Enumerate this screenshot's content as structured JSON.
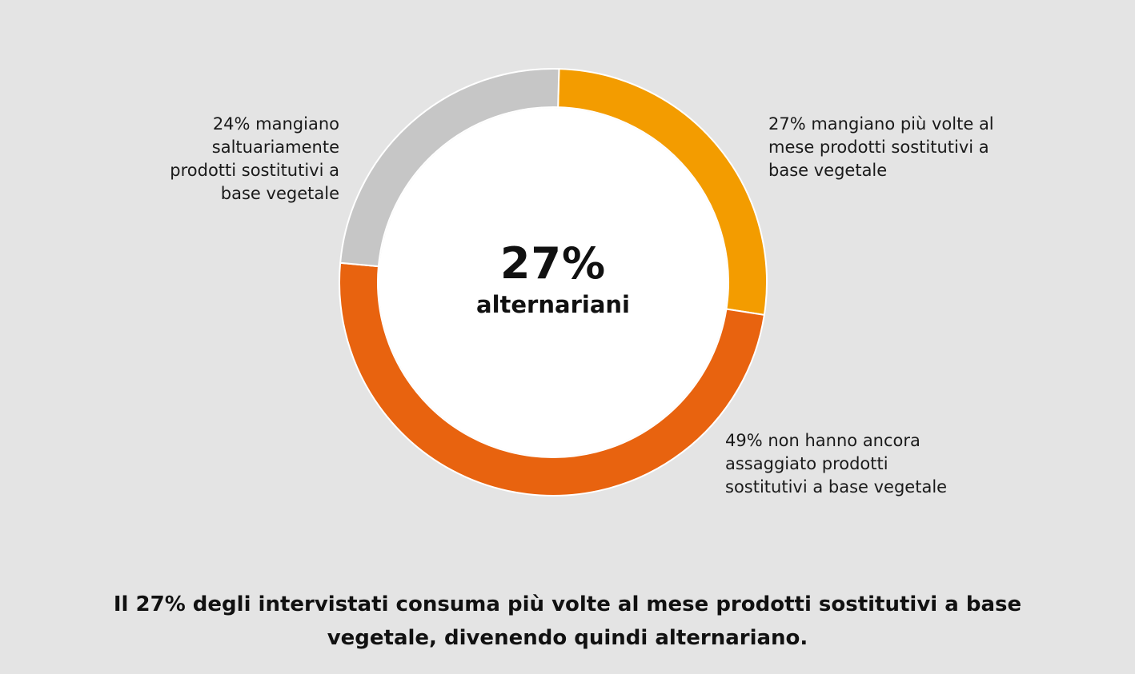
{
  "chart_data": {
    "type": "pie",
    "center_value": "27%",
    "center_text": "alternariani",
    "slices": [
      {
        "label": "27% mangiano più volte al mese prodotti sostitutivi a base vegetale",
        "value": 27,
        "color": "#f39c00"
      },
      {
        "label": "49% non hanno ancora assaggiato prodotti sostitutivi a base vegetale",
        "value": 49,
        "color": "#e8630f"
      },
      {
        "label": "24% mangiano saltuariamente prodotti sostitutivi a base vegetale",
        "value": 24,
        "color": "#c6c6c6"
      }
    ],
    "caption": "Il 27% degli intervistati consuma più volte al mese prodotti sostitutivi a base vegetale, divenendo quindi alternariano."
  }
}
